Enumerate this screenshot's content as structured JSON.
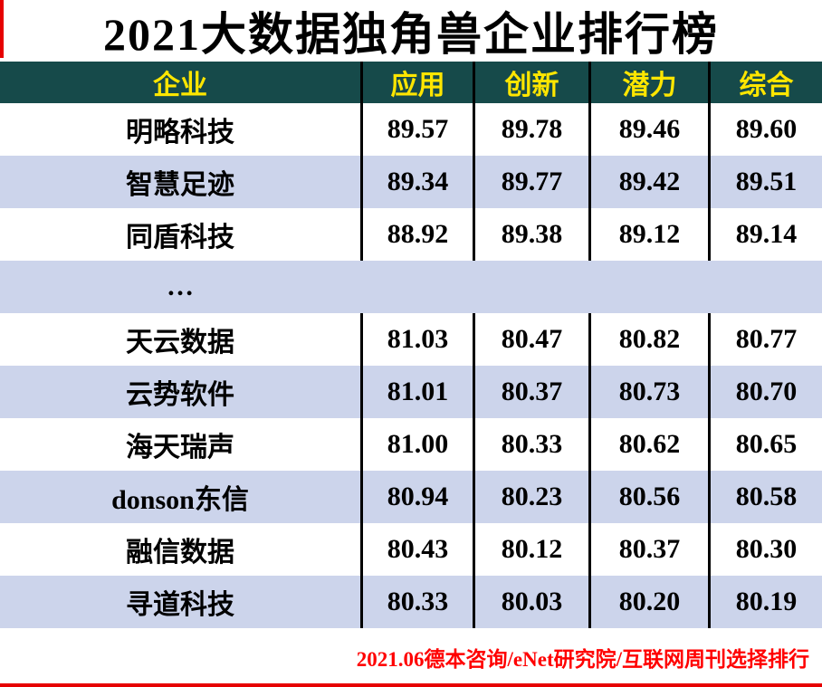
{
  "title": "2021大数据独角兽企业排行榜",
  "table": {
    "headers": [
      "企业",
      "应用",
      "创新",
      "潜力",
      "综合"
    ],
    "rows": [
      {
        "company": "明略科技",
        "scores": [
          "89.57",
          "89.78",
          "89.46",
          "89.60"
        ]
      },
      {
        "company": "智慧足迹",
        "scores": [
          "89.34",
          "89.77",
          "89.42",
          "89.51"
        ]
      },
      {
        "company": "同盾科技",
        "scores": [
          "88.92",
          "89.38",
          "89.12",
          "89.14"
        ]
      },
      {
        "company": "…",
        "scores": [
          "",
          "",
          "",
          ""
        ]
      },
      {
        "company": "天云数据",
        "scores": [
          "81.03",
          "80.47",
          "80.82",
          "80.77"
        ]
      },
      {
        "company": "云势软件",
        "scores": [
          "81.01",
          "80.37",
          "80.73",
          "80.70"
        ]
      },
      {
        "company": "海天瑞声",
        "scores": [
          "81.00",
          "80.33",
          "80.62",
          "80.65"
        ]
      },
      {
        "company": "donson东信",
        "scores": [
          "80.94",
          "80.23",
          "80.56",
          "80.58"
        ]
      },
      {
        "company": "融信数据",
        "scores": [
          "80.43",
          "80.12",
          "80.37",
          "80.30"
        ]
      },
      {
        "company": "寻道科技",
        "scores": [
          "80.33",
          "80.03",
          "80.20",
          "80.19"
        ]
      }
    ]
  },
  "footer": {
    "source": "2021.06德本咨询/eNet研究院/互联网周刊选择排行"
  },
  "colors": {
    "header_bg": "#164a4a",
    "header_text": "#ffe600",
    "row_alt": "#ccd4eb",
    "divider": "#000000",
    "source_text": "#ff0000",
    "border_accent": "#e60000"
  },
  "chart_data": {
    "type": "table",
    "title": "2021大数据独角兽企业排行榜",
    "columns": [
      "企业",
      "应用",
      "创新",
      "潜力",
      "综合"
    ],
    "rows": [
      [
        "明略科技",
        89.57,
        89.78,
        89.46,
        89.6
      ],
      [
        "智慧足迹",
        89.34,
        89.77,
        89.42,
        89.51
      ],
      [
        "同盾科技",
        88.92,
        89.38,
        89.12,
        89.14
      ],
      [
        "…",
        null,
        null,
        null,
        null
      ],
      [
        "天云数据",
        81.03,
        80.47,
        80.82,
        80.77
      ],
      [
        "云势软件",
        81.01,
        80.37,
        80.73,
        80.7
      ],
      [
        "海天瑞声",
        81.0,
        80.33,
        80.62,
        80.65
      ],
      [
        "donson东信",
        80.94,
        80.23,
        80.56,
        80.58
      ],
      [
        "融信数据",
        80.43,
        80.12,
        80.37,
        80.3
      ],
      [
        "寻道科技",
        80.33,
        80.03,
        80.2,
        80.19
      ]
    ],
    "source": "2021.06德本咨询/eNet研究院/互联网周刊选择排行",
    "notes": "ranking table, alternating white / light periwinkle rows, dark teal header with yellow labels, black column dividers"
  }
}
